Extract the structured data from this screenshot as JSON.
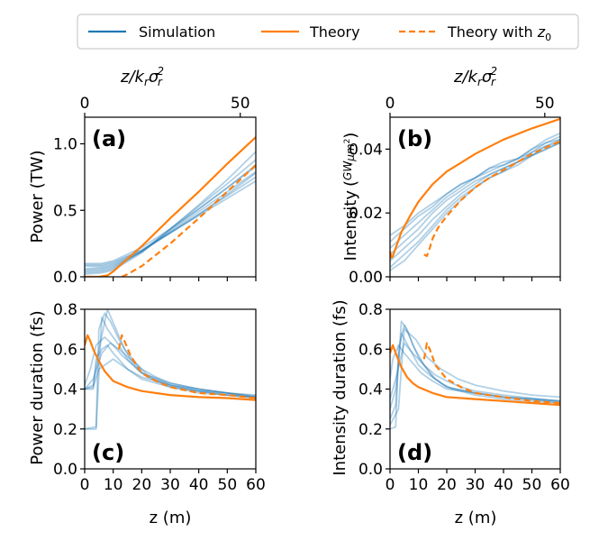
{
  "legend": {
    "items": [
      {
        "label": "Simulation",
        "color": "#1f77b4",
        "style": "solid"
      },
      {
        "label": "Theory",
        "color": "#ff7f0e",
        "style": "solid"
      },
      {
        "label_main": "Theory with ",
        "label_var": "z",
        "label_sub": "0",
        "color": "#ff7f0e",
        "style": "dashed"
      }
    ]
  },
  "top_axis": {
    "label_main": "z/k",
    "label_sub1": "r",
    "label_mid": "σ",
    "label_sub2": "r",
    "label_sup": "2",
    "ticks": [
      0,
      50
    ],
    "tick_labels": [
      "0",
      "50"
    ]
  },
  "chart_data": [
    {
      "id": "a",
      "type": "line",
      "panel_label": "(a)",
      "ylabel": "Power (TW)",
      "xlim": [
        0,
        60
      ],
      "ylim": [
        0,
        1.2
      ],
      "xticks": [
        0,
        10,
        20,
        30,
        40,
        50,
        60
      ],
      "yticks": [
        0.0,
        0.5,
        1.0
      ],
      "ytick_labels": [
        "0.0",
        "0.5",
        "1.0"
      ],
      "theory": {
        "x": [
          0,
          5,
          8,
          10,
          20,
          30,
          40,
          50,
          60
        ],
        "y": [
          0.0,
          0.0,
          0.01,
          0.04,
          0.23,
          0.44,
          0.64,
          0.85,
          1.05
        ]
      },
      "theory_z0": {
        "x": [
          13,
          15,
          20,
          30,
          40,
          50,
          60
        ],
        "y": [
          0.0,
          0.02,
          0.08,
          0.25,
          0.44,
          0.64,
          0.84
        ]
      },
      "simulation": [
        {
          "x": [
            0,
            6,
            10,
            20,
            30,
            40,
            50,
            60
          ],
          "y": [
            0.02,
            0.03,
            0.05,
            0.18,
            0.36,
            0.54,
            0.73,
            0.94
          ]
        },
        {
          "x": [
            0,
            6,
            10,
            20,
            30,
            40,
            50,
            60
          ],
          "y": [
            0.03,
            0.04,
            0.06,
            0.19,
            0.36,
            0.53,
            0.7,
            0.88
          ]
        },
        {
          "x": [
            0,
            6,
            10,
            20,
            30,
            40,
            50,
            60
          ],
          "y": [
            0.04,
            0.05,
            0.07,
            0.19,
            0.35,
            0.51,
            0.67,
            0.83
          ]
        },
        {
          "x": [
            0,
            6,
            10,
            20,
            30,
            40,
            50,
            60
          ],
          "y": [
            0.05,
            0.06,
            0.08,
            0.19,
            0.34,
            0.49,
            0.64,
            0.79
          ]
        },
        {
          "x": [
            0,
            6,
            10,
            20,
            30,
            40,
            50,
            60
          ],
          "y": [
            0.06,
            0.07,
            0.09,
            0.19,
            0.33,
            0.47,
            0.61,
            0.75
          ]
        },
        {
          "x": [
            0,
            6,
            10,
            20,
            30,
            40,
            50,
            60
          ],
          "y": [
            0.08,
            0.08,
            0.1,
            0.2,
            0.33,
            0.46,
            0.59,
            0.72
          ]
        },
        {
          "x": [
            0,
            6,
            10,
            20,
            30,
            40,
            50,
            60
          ],
          "y": [
            0.09,
            0.09,
            0.11,
            0.2,
            0.33,
            0.47,
            0.62,
            0.78
          ]
        },
        {
          "x": [
            0,
            6,
            10,
            20,
            30,
            40,
            50,
            60
          ],
          "y": [
            0.1,
            0.1,
            0.12,
            0.22,
            0.36,
            0.51,
            0.67,
            0.84
          ]
        }
      ]
    },
    {
      "id": "b",
      "type": "line",
      "panel_label": "(b)",
      "ylabel": "Intensity",
      "ylabel_unit_num": "GW",
      "ylabel_unit_den": "μm",
      "ylabel_unit_sup": "2",
      "xlim": [
        0,
        60
      ],
      "ylim": [
        0,
        0.05
      ],
      "xticks": [
        0,
        10,
        20,
        30,
        40,
        50,
        60
      ],
      "yticks": [
        0.0,
        0.02,
        0.04
      ],
      "ytick_labels": [
        "0.00",
        "0.02",
        "0.04"
      ],
      "theory": {
        "x": [
          0,
          0.5,
          1,
          2,
          4,
          7,
          10,
          15,
          20,
          30,
          40,
          50,
          60
        ],
        "y": [
          0.008,
          0.006,
          0.0065,
          0.009,
          0.014,
          0.019,
          0.0235,
          0.029,
          0.033,
          0.0385,
          0.043,
          0.0465,
          0.0495
        ]
      },
      "theory_z0": {
        "x": [
          12,
          13,
          14,
          15,
          17,
          20,
          25,
          30,
          35,
          40,
          45,
          50,
          55,
          60
        ],
        "y": [
          0.007,
          0.0065,
          0.009,
          0.012,
          0.0155,
          0.019,
          0.024,
          0.028,
          0.031,
          0.0335,
          0.036,
          0.0385,
          0.0405,
          0.0425
        ]
      },
      "simulation": [
        {
          "x": [
            0,
            5,
            10,
            15,
            20,
            25,
            30,
            35,
            40,
            45,
            50,
            55,
            60
          ],
          "y": [
            0.011,
            0.015,
            0.019,
            0.022,
            0.026,
            0.029,
            0.031,
            0.034,
            0.035,
            0.037,
            0.04,
            0.042,
            0.044
          ]
        },
        {
          "x": [
            0,
            5,
            10,
            15,
            20,
            25,
            30,
            35,
            40,
            45,
            50,
            55,
            60
          ],
          "y": [
            0.009,
            0.013,
            0.017,
            0.021,
            0.025,
            0.028,
            0.031,
            0.033,
            0.035,
            0.037,
            0.039,
            0.042,
            0.043
          ]
        },
        {
          "x": [
            0,
            5,
            10,
            15,
            20,
            25,
            30,
            35,
            40,
            45,
            50,
            55,
            60
          ],
          "y": [
            0.007,
            0.011,
            0.015,
            0.02,
            0.024,
            0.027,
            0.03,
            0.032,
            0.034,
            0.036,
            0.039,
            0.041,
            0.043
          ]
        },
        {
          "x": [
            0,
            5,
            10,
            15,
            20,
            25,
            30,
            35,
            40,
            45,
            50,
            55,
            60
          ],
          "y": [
            0.005,
            0.009,
            0.013,
            0.018,
            0.022,
            0.026,
            0.029,
            0.032,
            0.034,
            0.036,
            0.038,
            0.041,
            0.042
          ]
        },
        {
          "x": [
            0,
            5,
            10,
            15,
            20,
            25,
            30,
            35,
            40,
            45,
            50,
            55,
            60
          ],
          "y": [
            0.003,
            0.007,
            0.011,
            0.016,
            0.021,
            0.025,
            0.028,
            0.031,
            0.033,
            0.036,
            0.038,
            0.04,
            0.042
          ]
        },
        {
          "x": [
            0,
            5,
            10,
            15,
            20,
            25,
            30,
            35,
            40,
            45,
            50,
            55,
            60
          ],
          "y": [
            0.013,
            0.016,
            0.02,
            0.023,
            0.026,
            0.029,
            0.031,
            0.034,
            0.036,
            0.037,
            0.04,
            0.043,
            0.045
          ]
        },
        {
          "x": [
            0,
            5,
            10,
            15,
            20,
            25,
            30,
            35,
            40,
            45,
            50,
            55,
            60
          ],
          "y": [
            0.002,
            0.005,
            0.01,
            0.015,
            0.02,
            0.024,
            0.028,
            0.031,
            0.033,
            0.035,
            0.038,
            0.04,
            0.042
          ]
        }
      ]
    },
    {
      "id": "c",
      "type": "line",
      "panel_label": "(c)",
      "ylabel": "Power duration (fs)",
      "xlabel": "z (m)",
      "xlim": [
        0,
        60
      ],
      "ylim": [
        0,
        0.8
      ],
      "xticks": [
        0,
        10,
        20,
        30,
        40,
        50,
        60
      ],
      "xtick_labels": [
        "0",
        "10",
        "20",
        "30",
        "40",
        "50",
        "60"
      ],
      "yticks": [
        0.0,
        0.2,
        0.4,
        0.6,
        0.8
      ],
      "ytick_labels": [
        "0.0",
        "0.2",
        "0.4",
        "0.6",
        "0.8"
      ],
      "theory": {
        "x": [
          0,
          1,
          2,
          3,
          5,
          7,
          10,
          15,
          20,
          30,
          40,
          50,
          60
        ],
        "y": [
          0.62,
          0.67,
          0.64,
          0.6,
          0.54,
          0.49,
          0.44,
          0.41,
          0.39,
          0.37,
          0.36,
          0.355,
          0.345
        ]
      },
      "theory_z0": {
        "x": [
          12,
          13,
          14,
          16,
          20,
          25,
          30,
          40,
          50,
          60
        ],
        "y": [
          0.6,
          0.67,
          0.64,
          0.57,
          0.48,
          0.44,
          0.41,
          0.38,
          0.37,
          0.355
        ]
      },
      "simulation": [
        {
          "x": [
            0,
            3,
            4,
            6,
            8,
            10,
            15,
            20,
            30,
            40,
            50,
            60
          ],
          "y": [
            0.4,
            0.4,
            0.55,
            0.6,
            0.62,
            0.58,
            0.5,
            0.45,
            0.41,
            0.39,
            0.38,
            0.37
          ]
        },
        {
          "x": [
            0,
            4,
            5,
            7,
            9,
            12,
            16,
            20,
            30,
            40,
            50,
            60
          ],
          "y": [
            0.2,
            0.21,
            0.7,
            0.78,
            0.74,
            0.65,
            0.55,
            0.48,
            0.43,
            0.4,
            0.38,
            0.36
          ]
        },
        {
          "x": [
            0,
            3,
            5,
            8,
            11,
            14,
            18,
            22,
            30,
            40,
            50,
            60
          ],
          "y": [
            0.4,
            0.42,
            0.6,
            0.8,
            0.7,
            0.6,
            0.53,
            0.47,
            0.42,
            0.39,
            0.37,
            0.36
          ]
        },
        {
          "x": [
            0,
            2,
            4,
            7,
            10,
            13,
            17,
            22,
            30,
            40,
            50,
            60
          ],
          "y": [
            0.42,
            0.5,
            0.62,
            0.66,
            0.62,
            0.57,
            0.52,
            0.46,
            0.41,
            0.38,
            0.37,
            0.355
          ]
        },
        {
          "x": [
            0,
            3,
            6,
            9,
            12,
            16,
            20,
            25,
            30,
            40,
            50,
            60
          ],
          "y": [
            0.4,
            0.45,
            0.58,
            0.63,
            0.6,
            0.55,
            0.5,
            0.46,
            0.43,
            0.4,
            0.38,
            0.36
          ]
        },
        {
          "x": [
            0,
            4,
            6,
            8,
            12,
            15,
            19,
            24,
            30,
            40,
            50,
            60
          ],
          "y": [
            0.2,
            0.2,
            0.76,
            0.7,
            0.62,
            0.55,
            0.49,
            0.45,
            0.42,
            0.39,
            0.37,
            0.355
          ]
        },
        {
          "x": [
            0,
            3,
            5,
            10,
            15,
            20,
            25,
            30,
            40,
            50,
            60
          ],
          "y": [
            0.4,
            0.41,
            0.5,
            0.55,
            0.5,
            0.46,
            0.44,
            0.42,
            0.4,
            0.38,
            0.365
          ]
        }
      ]
    },
    {
      "id": "d",
      "type": "line",
      "panel_label": "(d)",
      "ylabel": "Intensity duration (fs)",
      "xlabel": "z (m)",
      "xlim": [
        0,
        60
      ],
      "ylim": [
        0,
        0.8
      ],
      "xticks": [
        0,
        10,
        20,
        30,
        40,
        50,
        60
      ],
      "xtick_labels": [
        "0",
        "10",
        "20",
        "30",
        "40",
        "50",
        "60"
      ],
      "yticks": [
        0.0,
        0.2,
        0.4,
        0.6,
        0.8
      ],
      "ytick_labels": [
        "0.0",
        "0.2",
        "0.4",
        "0.6",
        "0.8"
      ],
      "theory": {
        "x": [
          0,
          1,
          2,
          4,
          6,
          8,
          10,
          15,
          20,
          30,
          40,
          50,
          60
        ],
        "y": [
          0.58,
          0.62,
          0.58,
          0.51,
          0.46,
          0.43,
          0.41,
          0.38,
          0.36,
          0.35,
          0.34,
          0.33,
          0.32
        ]
      },
      "theory_z0": {
        "x": [
          12,
          13,
          14,
          16,
          20,
          25,
          30,
          40,
          50,
          60
        ],
        "y": [
          0.55,
          0.63,
          0.6,
          0.52,
          0.45,
          0.41,
          0.38,
          0.36,
          0.34,
          0.33
        ]
      },
      "simulation": [
        {
          "x": [
            0,
            2,
            3,
            5,
            7,
            10,
            15,
            20,
            30,
            40,
            50,
            60
          ],
          "y": [
            0.2,
            0.21,
            0.6,
            0.72,
            0.66,
            0.56,
            0.46,
            0.41,
            0.38,
            0.36,
            0.35,
            0.34
          ]
        },
        {
          "x": [
            0,
            2,
            4,
            6,
            8,
            12,
            16,
            20,
            30,
            40,
            50,
            60
          ],
          "y": [
            0.25,
            0.32,
            0.74,
            0.7,
            0.62,
            0.52,
            0.45,
            0.41,
            0.38,
            0.36,
            0.35,
            0.33
          ]
        },
        {
          "x": [
            0,
            1,
            3,
            5,
            8,
            11,
            15,
            20,
            30,
            40,
            50,
            60
          ],
          "y": [
            0.45,
            0.55,
            0.62,
            0.58,
            0.53,
            0.48,
            0.44,
            0.4,
            0.38,
            0.36,
            0.35,
            0.34
          ]
        },
        {
          "x": [
            0,
            2,
            4,
            7,
            10,
            14,
            18,
            22,
            30,
            40,
            50,
            60
          ],
          "y": [
            0.3,
            0.4,
            0.68,
            0.6,
            0.52,
            0.47,
            0.43,
            0.4,
            0.37,
            0.35,
            0.34,
            0.33
          ]
        },
        {
          "x": [
            0,
            2,
            5,
            8,
            12,
            16,
            20,
            25,
            30,
            40,
            50,
            60
          ],
          "y": [
            0.35,
            0.45,
            0.63,
            0.58,
            0.52,
            0.47,
            0.44,
            0.41,
            0.39,
            0.37,
            0.355,
            0.34
          ]
        },
        {
          "x": [
            0,
            3,
            5,
            9,
            13,
            18,
            24,
            30,
            40,
            50,
            60
          ],
          "y": [
            0.22,
            0.3,
            0.7,
            0.65,
            0.56,
            0.5,
            0.45,
            0.42,
            0.39,
            0.37,
            0.36
          ]
        }
      ]
    }
  ]
}
